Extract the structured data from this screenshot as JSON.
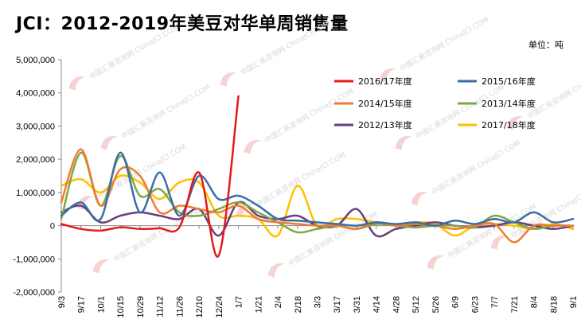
{
  "chart_data": {
    "type": "line",
    "title": "JCI：2012-2019年美豆对华单周销售量",
    "unit_label": "单位：吨",
    "watermark": "中国汇易咨询网 ChinaJCI.COM",
    "ylim": [
      -2000000,
      5000000
    ],
    "ytick_values": [
      5000000,
      4000000,
      3000000,
      2000000,
      1000000,
      0,
      -1000000,
      -2000000
    ],
    "ytick_labels": [
      "5,000,000",
      "4,000,000",
      "3,000,000",
      "2,000,000",
      "1,000,000",
      "0",
      "-1,000,000",
      "-2,000,000"
    ],
    "categories": [
      "9/3",
      "9/17",
      "10/1",
      "10/15",
      "10/29",
      "11/12",
      "11/26",
      "12/10",
      "12/24",
      "1/7",
      "1/21",
      "2/4",
      "2/18",
      "3/3",
      "3/17",
      "3/31",
      "4/14",
      "4/28",
      "5/12",
      "5/26",
      "6/9",
      "6/23",
      "7/7",
      "7/21",
      "8/4",
      "8/18",
      "9/1"
    ],
    "legend_position": "top-right",
    "series": [
      {
        "name": "2016/17年度",
        "color": "#e41a1c",
        "values": [
          50000,
          -100000,
          -150000,
          -50000,
          -100000,
          -80000,
          -50000,
          1600000,
          -900000,
          3900000,
          null,
          null,
          null,
          null,
          null,
          null,
          null,
          null,
          null,
          null,
          null,
          null,
          null,
          null,
          null,
          null,
          null
        ]
      },
      {
        "name": "2015/16年度",
        "color": "#3a6ea5",
        "values": [
          300000,
          700000,
          200000,
          2200000,
          400000,
          1600000,
          300000,
          1500000,
          800000,
          900000,
          600000,
          200000,
          150000,
          100000,
          50000,
          0,
          100000,
          50000,
          100000,
          0,
          150000,
          50000,
          200000,
          100000,
          400000,
          100000,
          200000
        ]
      },
      {
        "name": "2014/15年度",
        "color": "#ed7d31",
        "values": [
          700000,
          2300000,
          600000,
          1700000,
          1500000,
          400000,
          600000,
          500000,
          400000,
          600000,
          200000,
          100000,
          50000,
          0,
          0,
          -100000,
          100000,
          0,
          50000,
          0,
          -100000,
          0,
          50000,
          -500000,
          0,
          0,
          0
        ]
      },
      {
        "name": "2013/14年度",
        "color": "#7fa843",
        "values": [
          200000,
          2200000,
          600000,
          2100000,
          900000,
          1100000,
          400000,
          300000,
          500000,
          700000,
          400000,
          100000,
          -200000,
          -100000,
          0,
          -100000,
          50000,
          0,
          -50000,
          0,
          0,
          -50000,
          300000,
          100000,
          -100000,
          0,
          0
        ]
      },
      {
        "name": "2012/13年度",
        "color": "#6b3d7f",
        "values": [
          400000,
          600000,
          100000,
          300000,
          400000,
          300000,
          200000,
          500000,
          -300000,
          700000,
          300000,
          200000,
          300000,
          0,
          0,
          500000,
          -300000,
          -100000,
          0,
          100000,
          0,
          -50000,
          0,
          100000,
          0,
          -100000,
          0
        ]
      },
      {
        "name": "2017/18年度",
        "color": "#ffc000",
        "values": [
          1200000,
          1400000,
          1000000,
          1500000,
          1300000,
          800000,
          1300000,
          1300000,
          300000,
          300000,
          200000,
          -300000,
          1200000,
          0,
          200000,
          200000,
          100000,
          0,
          100000,
          50000,
          -300000,
          0,
          50000,
          0,
          -100000,
          50000,
          -100000
        ]
      }
    ]
  }
}
